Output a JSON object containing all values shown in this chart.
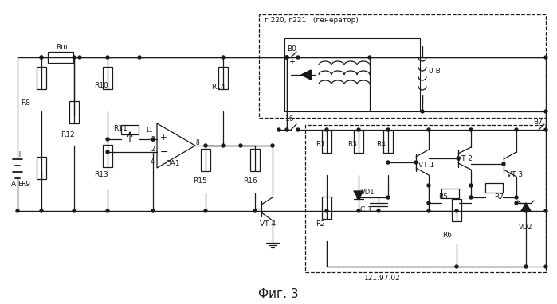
{
  "title": "Фиг. 3",
  "title_fontsize": 11,
  "background_color": "#ffffff",
  "line_color": "#1a1a1a",
  "text_color": "#1a1a1a",
  "generator_label": "г 220, г221   (генератор)",
  "bottom_label": "121.97.02",
  "figsize": [
    6.99,
    3.82
  ],
  "dpi": 100
}
